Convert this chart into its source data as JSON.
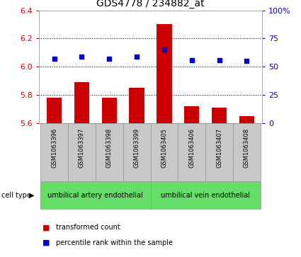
{
  "title": "GDS4778 / 234882_at",
  "samples": [
    "GSM1063396",
    "GSM1063397",
    "GSM1063398",
    "GSM1063399",
    "GSM1063405",
    "GSM1063406",
    "GSM1063407",
    "GSM1063408"
  ],
  "transformed_count": [
    5.78,
    5.89,
    5.78,
    5.85,
    6.3,
    5.72,
    5.71,
    5.65
  ],
  "percentile_rank": [
    57,
    59,
    57,
    59,
    65,
    56,
    56,
    55
  ],
  "ylim_left": [
    5.6,
    6.4
  ],
  "ylim_right": [
    0,
    100
  ],
  "yticks_left": [
    5.6,
    5.8,
    6.0,
    6.2,
    6.4
  ],
  "yticks_right": [
    0,
    25,
    50,
    75,
    100
  ],
  "ytick_labels_right": [
    "0",
    "25",
    "50",
    "75",
    "100%"
  ],
  "bar_color": "#cc0000",
  "dot_color": "#0000cc",
  "grid_color": "#000000",
  "cell_type_groups": [
    {
      "label": "umbilical artery endothelial",
      "start": 0,
      "end": 4,
      "color": "#66dd66"
    },
    {
      "label": "umbilical vein endothelial",
      "start": 4,
      "end": 8,
      "color": "#66dd66"
    }
  ],
  "legend_items": [
    {
      "label": "transformed count",
      "color": "#cc0000"
    },
    {
      "label": "percentile rank within the sample",
      "color": "#0000cc"
    }
  ],
  "cell_type_label": "cell type",
  "tick_area_color": "#c8c8c8",
  "border_color": "#999999"
}
